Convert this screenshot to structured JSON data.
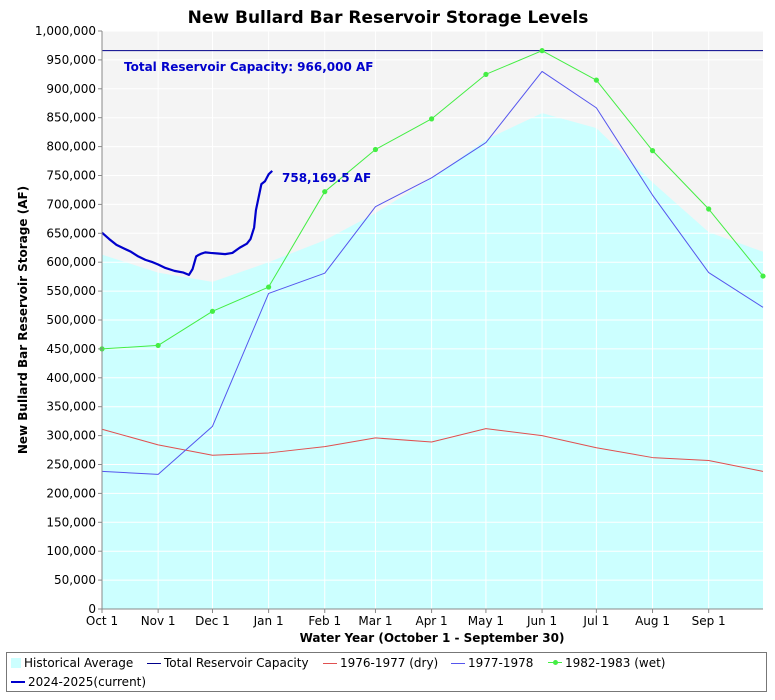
{
  "chart_data": {
    "type": "line",
    "title": "New Bullard Bar Reservoir Storage Levels",
    "xlabel": "Water Year (October 1 - September 30)",
    "ylabel": "New Bullard Bar Reservoir Storage (AF)",
    "ylim": [
      0,
      1000000
    ],
    "yticks": [
      0,
      50000,
      100000,
      150000,
      200000,
      250000,
      300000,
      350000,
      400000,
      450000,
      500000,
      550000,
      600000,
      650000,
      700000,
      750000,
      800000,
      850000,
      900000,
      950000,
      1000000
    ],
    "ytick_labels": [
      "0",
      "50,000",
      "100,000",
      "150,000",
      "200,000",
      "250,000",
      "300,000",
      "350,000",
      "400,000",
      "450,000",
      "500,000",
      "550,000",
      "600,000",
      "650,000",
      "700,000",
      "750,000",
      "800,000",
      "850,000",
      "900,000",
      "950,000",
      "1,000,000"
    ],
    "categories": [
      "Oct 1",
      "Nov 1",
      "Dec 1",
      "Jan 1",
      "Feb 1",
      "Mar 1",
      "Apr 1",
      "May 1",
      "Jun 1",
      "Jul 1",
      "Aug 1",
      "Sep 1"
    ],
    "x_month_days": [
      0,
      31,
      61,
      92,
      123,
      151,
      182,
      212,
      243,
      273,
      304,
      335
    ],
    "x_end_day": 365,
    "grid": true,
    "legend_position": "bottom",
    "capacity": {
      "name": "Total Reservoir Capacity",
      "value": 966000,
      "label": "Total Reservoir Capacity: 966,000 AF",
      "color": "#00008b"
    },
    "current_label": "758,169.5 AF",
    "series": [
      {
        "name": "Historical Average",
        "kind": "area",
        "color": "#ccffff",
        "x": [
          0,
          31,
          61,
          92,
          123,
          151,
          182,
          212,
          243,
          273,
          304,
          335,
          365
        ],
        "values": [
          613000,
          582000,
          566000,
          600000,
          638000,
          685000,
          745000,
          812000,
          858000,
          832000,
          738000,
          652000,
          618000
        ]
      },
      {
        "name": "1976-1977 (dry)",
        "kind": "line",
        "color": "#e05050",
        "x": [
          0,
          31,
          61,
          92,
          123,
          151,
          182,
          212,
          243,
          273,
          304,
          335,
          365
        ],
        "values": [
          311000,
          284000,
          266000,
          270000,
          281000,
          296000,
          289000,
          312000,
          300000,
          279000,
          262000,
          257000,
          238000
        ]
      },
      {
        "name": "1977-1978",
        "kind": "line",
        "color": "#5555ee",
        "x": [
          0,
          31,
          61,
          92,
          123,
          151,
          182,
          212,
          243,
          273,
          304,
          335,
          365
        ],
        "values": [
          238000,
          233000,
          316000,
          546000,
          581000,
          696000,
          746000,
          807000,
          930000,
          867000,
          716000,
          582000,
          522000
        ]
      },
      {
        "name": "1982-1983 (wet)",
        "kind": "line",
        "color": "#44ee44",
        "markers": true,
        "x": [
          0,
          31,
          61,
          92,
          123,
          151,
          182,
          212,
          243,
          273,
          304,
          335,
          365
        ],
        "values": [
          450000,
          456000,
          515000,
          557000,
          722000,
          795000,
          848000,
          925000,
          966000,
          915000,
          793000,
          692000,
          576000
        ]
      },
      {
        "name": "2024-2025(current)",
        "kind": "line",
        "color": "#0000cc",
        "x": [
          0,
          4,
          8,
          12,
          16,
          20,
          24,
          28,
          31,
          35,
          40,
          45,
          48,
          50,
          52,
          53,
          55,
          57,
          60,
          64,
          68,
          72,
          76,
          80,
          82,
          84,
          85,
          87,
          88,
          90,
          92,
          94
        ],
        "values": [
          651000,
          640000,
          630000,
          624000,
          618000,
          610000,
          604000,
          600000,
          596000,
          590000,
          585000,
          582000,
          578000,
          588000,
          610000,
          612000,
          615000,
          617000,
          616000,
          615000,
          614000,
          616000,
          625000,
          632000,
          640000,
          660000,
          690000,
          720000,
          735000,
          740000,
          752000,
          758000
        ]
      }
    ]
  },
  "legend": {
    "items": [
      {
        "label": "Historical Average",
        "kind": "area",
        "color": "#ccffff"
      },
      {
        "label": "Total Reservoir Capacity",
        "kind": "line",
        "color": "#00008b"
      },
      {
        "label": "1976-1977 (dry)",
        "kind": "line",
        "color": "#e05050"
      },
      {
        "label": "1977-1978",
        "kind": "line",
        "color": "#5555ee"
      },
      {
        "label": "1982-1983 (wet)",
        "kind": "marker",
        "color": "#44ee44"
      },
      {
        "label": "2024-2025(current)",
        "kind": "thick",
        "color": "#0000cc"
      }
    ]
  }
}
